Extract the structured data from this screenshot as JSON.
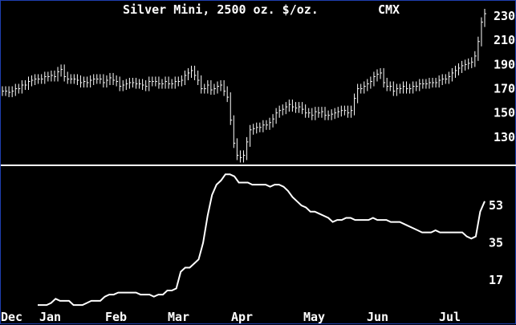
{
  "colors": {
    "background": "#000000",
    "foreground": "#ffffff",
    "border": "#1f3fb0"
  },
  "chart_data": [
    {
      "type": "ohlc",
      "title": "Silver Mini, 2500 oz. $/oz.",
      "exchange": "CMX",
      "ylim": [
        110,
        240
      ],
      "y_ticks": [
        130,
        150,
        170,
        190,
        210,
        230
      ],
      "x_ticks": [
        "Dec",
        "Jan",
        "Feb",
        "Mar",
        "Apr",
        "May",
        "Jun",
        "Jul"
      ],
      "grid": false,
      "bars_close": [
        168,
        168,
        167,
        168,
        170,
        170,
        173,
        173,
        176,
        177,
        178,
        178,
        178,
        180,
        180,
        181,
        180,
        184,
        186,
        180,
        178,
        178,
        178,
        177,
        175,
        176,
        175,
        177,
        178,
        178,
        178,
        175,
        177,
        179,
        177,
        176,
        172,
        173,
        174,
        175,
        175,
        174,
        174,
        173,
        172,
        176,
        176,
        176,
        174,
        174,
        176,
        174,
        174,
        176,
        176,
        177,
        181,
        183,
        185,
        181,
        177,
        170,
        170,
        173,
        169,
        170,
        172,
        173,
        168,
        163,
        144,
        125,
        115,
        113,
        115,
        126,
        136,
        137,
        138,
        138,
        140,
        140,
        142,
        145,
        150,
        152,
        153,
        155,
        157,
        155,
        154,
        155,
        153,
        150,
        150,
        148,
        151,
        150,
        151,
        148,
        148,
        149,
        150,
        151,
        152,
        152,
        150,
        152,
        162,
        170,
        170,
        172,
        174,
        176,
        180,
        182,
        183,
        175,
        172,
        172,
        168,
        170,
        170,
        172,
        170,
        170,
        172,
        172,
        174,
        174,
        174,
        175,
        175,
        175,
        177,
        178,
        178,
        180,
        183,
        185,
        187,
        189,
        190,
        191,
        192,
        197,
        209,
        225,
        232
      ],
      "oscillator_ticks": [
        17,
        35,
        53
      ],
      "oscillator": [
        5,
        5,
        5,
        6,
        8,
        7,
        7,
        7,
        5,
        5,
        5,
        6,
        7,
        7,
        7,
        9,
        10,
        10,
        11,
        11,
        11,
        11,
        11,
        10,
        10,
        10,
        9,
        10,
        10,
        12,
        12,
        13,
        21,
        23,
        23,
        25,
        27,
        35,
        48,
        58,
        63,
        65,
        68,
        68,
        67,
        64,
        64,
        64,
        63,
        63,
        63,
        63,
        62,
        63,
        63,
        62,
        60,
        57,
        55,
        53,
        52,
        50,
        50,
        49,
        48,
        47,
        45,
        46,
        46,
        47,
        47,
        46,
        46,
        46,
        46,
        47,
        46,
        46,
        46,
        45,
        45,
        45,
        44,
        43,
        42,
        41,
        40,
        40,
        40,
        41,
        40,
        40,
        40,
        40,
        40,
        40,
        38,
        37,
        38,
        50,
        55
      ]
    }
  ]
}
